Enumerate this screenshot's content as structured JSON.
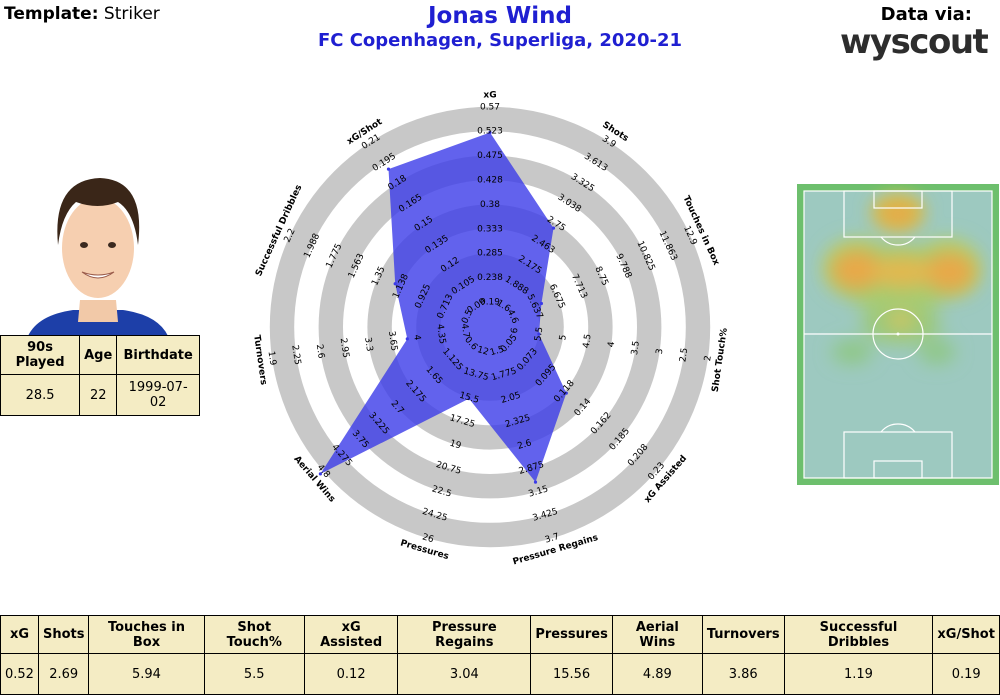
{
  "header": {
    "template_key": "Template:",
    "template_value": "Striker",
    "player_name": "Jonas Wind",
    "subtitle": "FC Copenhagen, Superliga, 2020-21",
    "data_via": "Data via:",
    "brand": "wyscout"
  },
  "colors": {
    "title": "#1f1fd1",
    "polygon_fill": "#3b3be8",
    "ring_gray": "#c8c8c8",
    "table_bg": "#f4ecc4",
    "pitch_green": "#6dbf6d"
  },
  "info_table": {
    "headers": [
      "90s Played",
      "Age",
      "Birthdate"
    ],
    "values": [
      "28.5",
      "22",
      "1999-07-02"
    ]
  },
  "stats_table": {
    "headers": [
      "xG",
      "Shots",
      "Touches in Box",
      "Shot Touch%",
      "xG Assisted",
      "Pressure Regains",
      "Pressures",
      "Aerial Wins",
      "Turnovers",
      "Successful Dribbles",
      "xG/Shot"
    ],
    "values": [
      "0.52",
      "2.69",
      "5.94",
      "5.5",
      "0.12",
      "3.04",
      "15.56",
      "4.89",
      "3.86",
      "1.19",
      "0.19"
    ]
  },
  "chart_data": {
    "type": "radar",
    "title": "Jonas Wind",
    "subtitle": "FC Copenhagen, Superliga, 2020-21",
    "axes": [
      {
        "name": "xG",
        "ticks": [
          "0.19",
          "0.238",
          "0.285",
          "0.333",
          "0.38",
          "0.428",
          "0.475",
          "0.523",
          "0.57"
        ],
        "value": 0.52,
        "min": 0.19,
        "max": 0.57
      },
      {
        "name": "Shots",
        "ticks": [
          "1.6",
          "1.888",
          "2.175",
          "2.463",
          "2.75",
          "3.038",
          "3.325",
          "3.613",
          "3.9"
        ],
        "value": 2.69,
        "min": 1.6,
        "max": 3.9
      },
      {
        "name": "Touches in Box",
        "ticks": [
          "4.6",
          "5.637",
          "6.675",
          "7.713",
          "8.75",
          "9.788",
          "10.825",
          "11.863",
          "12.9"
        ],
        "value": 5.94,
        "min": 4.6,
        "max": 12.9
      },
      {
        "name": "Shot Touch%",
        "ticks": [
          "6",
          "5.5",
          "5",
          "4.5",
          "4",
          "3.5",
          "3",
          "2.5",
          "2"
        ],
        "value": 5.5,
        "min": 6,
        "max": 2
      },
      {
        "name": "xG Assisted",
        "ticks": [
          "0.05",
          "0.073",
          "0.095",
          "0.118",
          "0.14",
          "0.162",
          "0.185",
          "0.208",
          "0.23"
        ],
        "value": 0.12,
        "min": 0.05,
        "max": 0.23
      },
      {
        "name": "Pressure Regains",
        "ticks": [
          "1.5",
          "1.775",
          "2.05",
          "2.325",
          "2.6",
          "2.875",
          "3.15",
          "3.425",
          "3.7"
        ],
        "value": 3.04,
        "min": 1.5,
        "max": 3.7
      },
      {
        "name": "Pressures",
        "ticks": [
          "12",
          "13.75",
          "15.5",
          "17.25",
          "19",
          "20.75",
          "22.5",
          "24.25",
          "26"
        ],
        "value": 15.56,
        "min": 12,
        "max": 26
      },
      {
        "name": "Aerial Wins",
        "ticks": [
          "0.6",
          "1.125",
          "1.65",
          "2.175",
          "2.7",
          "3.225",
          "3.75",
          "4.275",
          "4.8"
        ],
        "value": 4.89,
        "min": 0.6,
        "max": 4.8
      },
      {
        "name": "Turnovers",
        "ticks": [
          "4.7",
          "4.35",
          "4",
          "3.65",
          "3.3",
          "2.95",
          "2.6",
          "2.25",
          "1.9"
        ],
        "value": 3.86,
        "min": 4.7,
        "max": 1.9
      },
      {
        "name": "Successful Dribbles",
        "ticks": [
          "0.5",
          "0.713",
          "0.925",
          "1.138",
          "1.35",
          "1.563",
          "1.775",
          "1.988",
          "2.2"
        ],
        "value": 1.19,
        "min": 0.5,
        "max": 2.2
      },
      {
        "name": "xG/Shot",
        "ticks": [
          "0.09",
          "0.105",
          "0.12",
          "0.135",
          "0.15",
          "0.165",
          "0.18",
          "0.195",
          "0.21"
        ],
        "value": 0.19,
        "min": 0.09,
        "max": 0.21
      }
    ],
    "rings": 8,
    "grid": true
  }
}
